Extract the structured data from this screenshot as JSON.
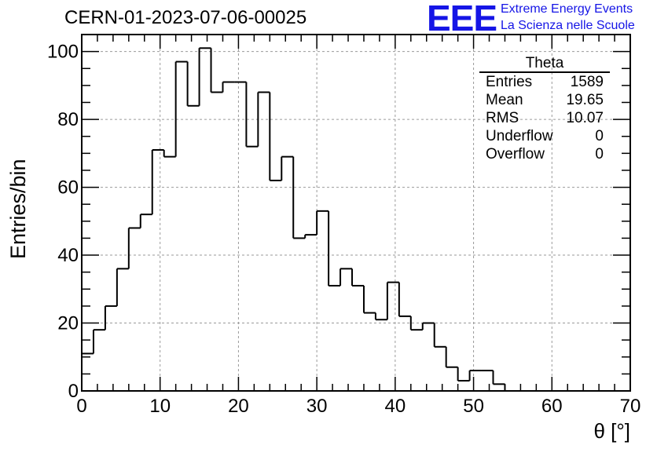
{
  "header": {
    "title": "CERN-01-2023-07-06-00025",
    "logo_text": "EEE",
    "logo_line1": "Extreme Energy Events",
    "logo_line2": "La Scienza nelle Scuole"
  },
  "stats_box": {
    "title": "Theta",
    "rows": [
      {
        "label": "Entries",
        "value": "1589"
      },
      {
        "label": "Mean",
        "value": "19.65"
      },
      {
        "label": "RMS",
        "value": "10.07"
      },
      {
        "label": "Underflow",
        "value": "0"
      },
      {
        "label": "Overflow",
        "value": "0"
      }
    ]
  },
  "chart_data": {
    "type": "histogram",
    "title": "CERN-01-2023-07-06-00025",
    "xlabel": "θ [°]",
    "ylabel": "Entries/bin",
    "xlim": [
      0,
      70
    ],
    "ylim": [
      0,
      105
    ],
    "bin_width": 1.5,
    "bin_edges_start": 0,
    "values": [
      11,
      18,
      25,
      36,
      48,
      52,
      71,
      69,
      97,
      84,
      101,
      88,
      91,
      91,
      72,
      88,
      62,
      69,
      45,
      46,
      53,
      31,
      36,
      31,
      23,
      21,
      32,
      22,
      18,
      20,
      13,
      7,
      3,
      6,
      6,
      2,
      0
    ],
    "x_ticks": [
      "0",
      "10",
      "20",
      "30",
      "40",
      "50",
      "60",
      "70"
    ],
    "y_ticks": [
      "0",
      "20",
      "40",
      "60",
      "80",
      "100"
    ],
    "grid": true,
    "line_color": "#000000",
    "logo_color": "#1515e6"
  }
}
